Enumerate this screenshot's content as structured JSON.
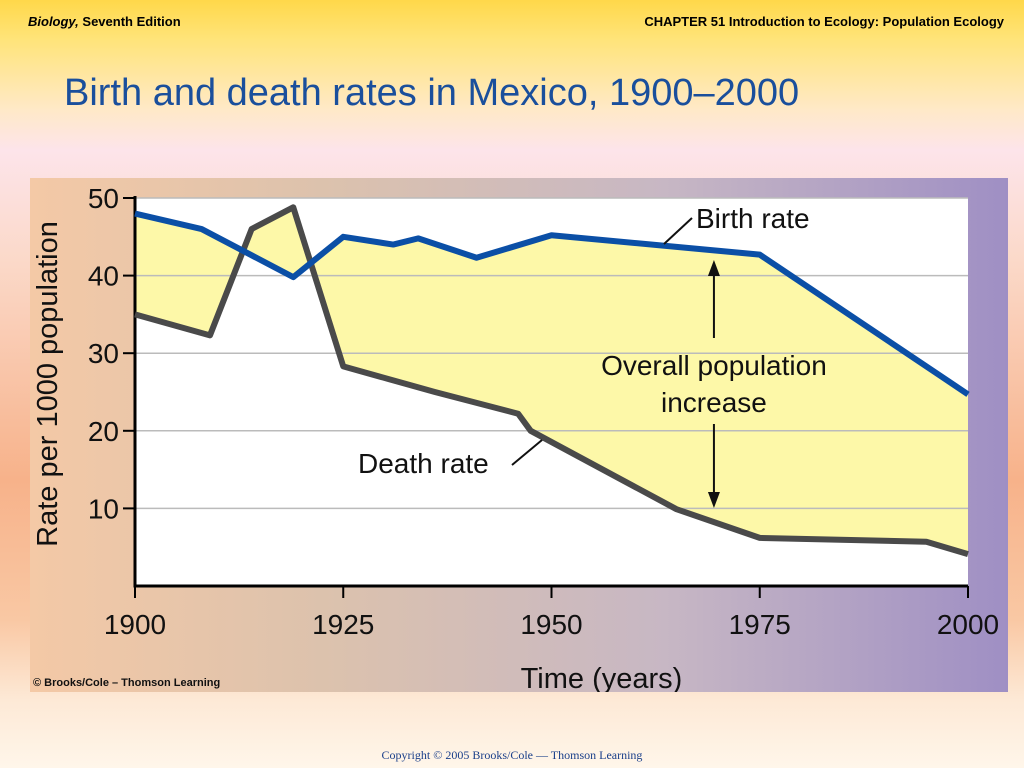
{
  "header": {
    "book_title": "Biology,",
    "edition": " Seventh Edition",
    "chapter": "CHAPTER 51 Introduction to Ecology: Population Ecology"
  },
  "slide_title": "Birth and death rates in Mexico, 1900–2000",
  "figure_credit": "© Brooks/Cole – Thomson Learning",
  "footer": "Copyright © 2005 Brooks/Cole — Thomson Learning",
  "colors": {
    "birth_line": "#0b4fa6",
    "death_line": "#4a4a4a",
    "fill": "#fdf8a8",
    "plot_bg": "#ffffff",
    "gridline": "#bbbbbb"
  },
  "chart_data": {
    "type": "line",
    "title": "",
    "xlabel": "Time (years)",
    "ylabel": "Rate per 1000 population",
    "xlim": [
      1900,
      2000
    ],
    "ylim": [
      0,
      50
    ],
    "x_ticks": [
      1900,
      1925,
      1950,
      1975,
      2000
    ],
    "y_ticks": [
      10,
      20,
      30,
      40,
      50
    ],
    "grid": "horizontal",
    "series": [
      {
        "name": "Birth rate",
        "x": [
          1900,
          1908,
          1919,
          1925,
          1931,
          1934,
          1941,
          1950,
          1965,
          1975,
          2000
        ],
        "y": [
          48,
          46,
          39.8,
          45,
          44,
          44.8,
          42.3,
          45.2,
          43.7,
          42.7,
          24.7
        ]
      },
      {
        "name": "Death rate",
        "x": [
          1900,
          1909,
          1914,
          1919,
          1925,
          1936,
          1946,
          1947.5,
          1965,
          1975,
          1995,
          2000
        ],
        "y": [
          35,
          32.3,
          46,
          48.8,
          28.3,
          25,
          22.2,
          20,
          9.9,
          6.2,
          5.7,
          4.1
        ]
      }
    ],
    "annotations": [
      {
        "text_lines": [
          "Overall population",
          "increase"
        ],
        "x": 1969.5,
        "y": 34
      }
    ]
  }
}
